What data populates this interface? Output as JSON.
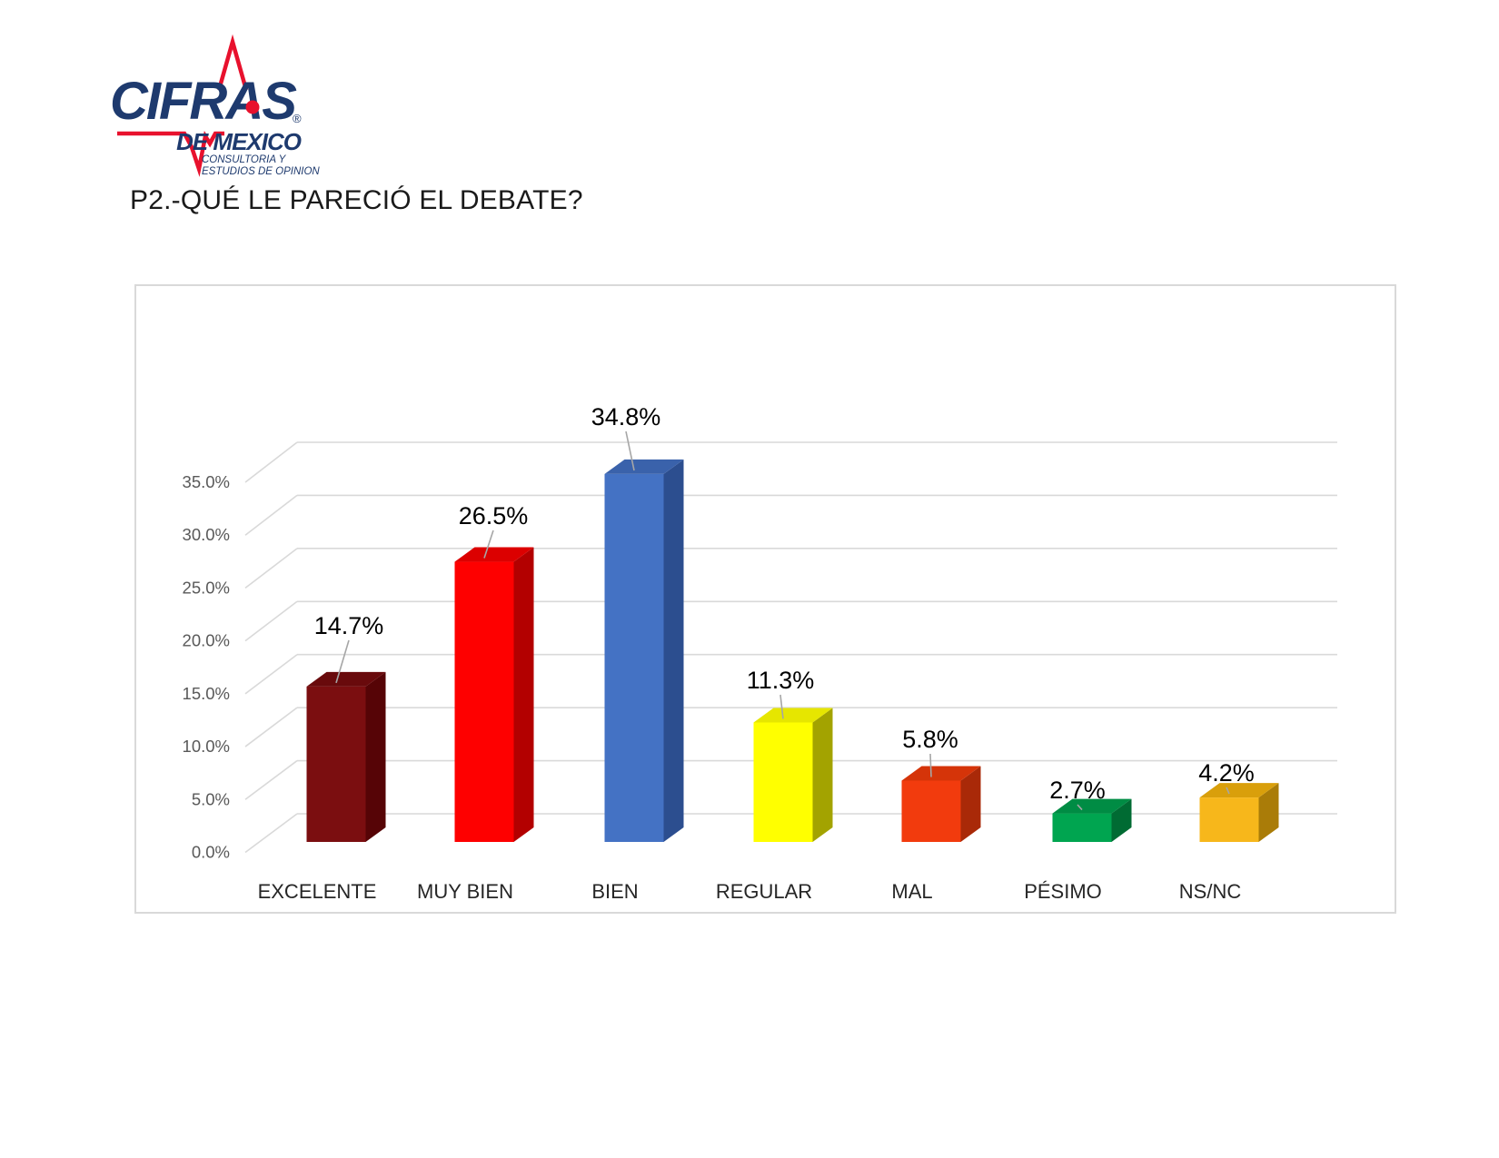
{
  "logo": {
    "brand": "CIFRAS",
    "registered": "®",
    "sub_brand": "DE MEXICO",
    "tagline_line1": "CONSULTORIA Y",
    "tagline_line2": "ESTUDIOS DE OPINION",
    "brand_color": "#1E3A6E",
    "pulse_color": "#E8112D"
  },
  "page_title": "P2.-QUÉ LE PARECIÓ EL DEBATE?",
  "chart_data": {
    "type": "bar",
    "projection": "3d",
    "title": "",
    "xlabel": "",
    "ylabel": "",
    "categories": [
      "EXCELENTE",
      "MUY BIEN",
      "BIEN",
      "REGULAR",
      "MAL",
      "PÉSIMO",
      "NS/NC"
    ],
    "values": [
      14.7,
      26.5,
      34.8,
      11.3,
      5.8,
      2.7,
      4.2
    ],
    "data_labels": [
      "14.7%",
      "26.5%",
      "34.8%",
      "11.3%",
      "5.8%",
      "2.7%",
      "4.2%"
    ],
    "yticks": [
      "0.0%",
      "5.0%",
      "10.0%",
      "15.0%",
      "20.0%",
      "25.0%",
      "30.0%",
      "35.0%"
    ],
    "ylim": [
      0,
      35
    ],
    "grid": true,
    "legend": false,
    "bar_colors": [
      {
        "front": "#7B0E10",
        "side": "#560406",
        "top": "#690A0C"
      },
      {
        "front": "#FE0000",
        "side": "#B30000",
        "top": "#DC0000"
      },
      {
        "front": "#4472C4",
        "side": "#2C4E8F",
        "top": "#3A62AB"
      },
      {
        "front": "#FFFF00",
        "side": "#A3A300",
        "top": "#E6E600"
      },
      {
        "front": "#F23B0D",
        "side": "#A92908",
        "top": "#D53409"
      },
      {
        "front": "#00A550",
        "side": "#006B33",
        "top": "#008C44"
      },
      {
        "front": "#F7B71B",
        "side": "#AA7C08",
        "top": "#D99F0B"
      }
    ],
    "grid_color": "#D9D9D9",
    "tick_color": "#595959",
    "category_color": "#262626",
    "data_label_color": "#000000",
    "leader_color": "#A6A6A6"
  }
}
